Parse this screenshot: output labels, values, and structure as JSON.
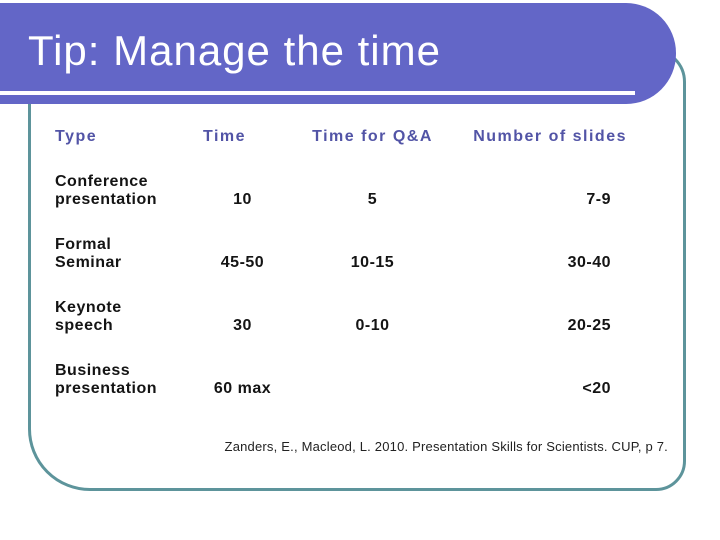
{
  "slide": {
    "title": "Tip: Manage the time",
    "citation": "Zanders, E., Macleod, L. 2010. Presentation Skills for Scientists. CUP, p 7."
  },
  "table": {
    "columns": [
      "Type",
      "Time",
      "Time for Q&A",
      "Number of slides"
    ],
    "rows": [
      {
        "type": "Conference\npresentation",
        "time": "10",
        "qa": "5",
        "slides": "7-9"
      },
      {
        "type": "Formal\nSeminar",
        "time": "45-50",
        "qa": "10-15",
        "slides": "30-40"
      },
      {
        "type": "Keynote\nspeech",
        "time": "30",
        "qa": "0-10",
        "slides": "20-25"
      },
      {
        "type": "Business\npresentation",
        "time": "60 max",
        "qa": "",
        "slides": "<20"
      }
    ]
  },
  "colors": {
    "banner": "#6366C7",
    "frame": "#5D949B",
    "header_text": "#5254A6",
    "body_text": "#141414",
    "title_text": "#FFFFFF",
    "background": "#FFFFFF"
  }
}
